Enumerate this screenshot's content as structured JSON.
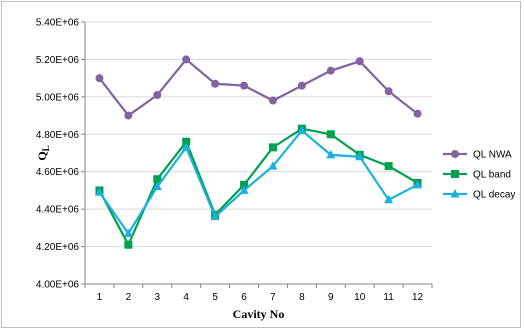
{
  "chart_data": {
    "type": "line",
    "title": "",
    "xlabel": "Cavity No",
    "ylabel": "Q",
    "ylabel_subscript": "L",
    "ylim": [
      4000000,
      5400000
    ],
    "yticks": [
      4000000,
      4200000,
      4400000,
      4600000,
      4800000,
      5000000,
      5200000,
      5400000
    ],
    "ytick_labels": [
      "4.00E+06",
      "4.20E+06",
      "4.40E+06",
      "4.60E+06",
      "4.80E+06",
      "5.00E+06",
      "5.20E+06",
      "5.40E+06"
    ],
    "categories": [
      "1",
      "2",
      "3",
      "4",
      "5",
      "6",
      "7",
      "8",
      "9",
      "10",
      "11",
      "12"
    ],
    "grid": "horizontal",
    "legend_position": "right",
    "series": [
      {
        "name": "QL NWA",
        "color": "#8064a2",
        "marker": "circle",
        "values": [
          5100000,
          4900000,
          5010000,
          5200000,
          5070000,
          5060000,
          4980000,
          5060000,
          5140000,
          5190000,
          5030000,
          4910000
        ]
      },
      {
        "name": "QL band",
        "color": "#00a050",
        "marker": "square",
        "values": [
          4500000,
          4210000,
          4560000,
          4760000,
          4370000,
          4530000,
          4730000,
          4830000,
          4800000,
          4690000,
          4630000,
          4540000
        ]
      },
      {
        "name": "QL decay",
        "color": "#1ab2dd",
        "marker": "triangle",
        "values": [
          4490000,
          4270000,
          4520000,
          4730000,
          4360000,
          4500000,
          4630000,
          4820000,
          4690000,
          4680000,
          4450000,
          4530000
        ]
      }
    ]
  }
}
